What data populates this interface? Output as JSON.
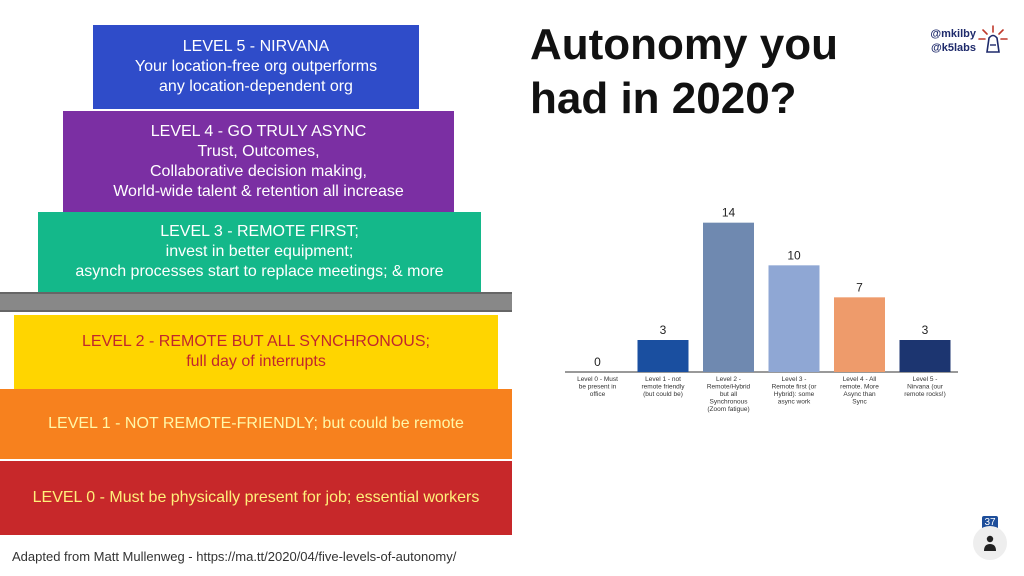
{
  "slide": {
    "title_lines": [
      "Autonomy you",
      "had in 2020?"
    ],
    "handles": [
      "@mkilby",
      "@k5labs"
    ],
    "footer": "Adapted from Matt Mullenweg - https://ma.tt/2020/04/five-levels-of-autonomy/",
    "page_number": "37"
  },
  "levels": [
    {
      "lines": [
        "LEVEL 5 - NIRVANA",
        "Your location-free org outperforms",
        "any location-dependent org"
      ],
      "color": "#2f4cc9",
      "text_color": "#ffffff"
    },
    {
      "lines": [
        "LEVEL 4 - GO TRULY ASYNC",
        "Trust, Outcomes,",
        "Collaborative decision making,",
        "World-wide talent & retention all increase"
      ],
      "color": "#7b2fa3",
      "text_color": "#ffffff"
    },
    {
      "lines": [
        "LEVEL 3 - REMOTE FIRST;",
        "invest in better equipment;",
        "asynch processes start  to replace meetings; & more"
      ],
      "color": "#14b88a",
      "text_color": "#ffffff"
    },
    {
      "lines": [
        "LEVEL 2 - REMOTE BUT ALL SYNCHRONOUS;",
        "full day of interrupts"
      ],
      "color": "#ffd500",
      "text_color": "#c1272d"
    },
    {
      "lines": [
        "LEVEL 1 - NOT REMOTE-FRIENDLY; but could be remote"
      ],
      "color": "#f7811e",
      "text_color": "#fff7a8"
    },
    {
      "lines": [
        "LEVEL 0 - Must be physically present for job; essential workers"
      ],
      "color": "#c7282a",
      "text_color": "#fff07a"
    }
  ],
  "chart_data": {
    "type": "bar",
    "categories": [
      "Level 0 - Must be present in office",
      "Level 1 - not remote friendly (but could be)",
      "Level 2 - Remote/Hybrid but all Synchronous (Zoom fatigue)",
      "Level 3 - Remote first (or Hybrid): some async work",
      "Level 4 - All remote. More Async than Sync",
      "Level 5 - Nirvana (our remote rocks!)"
    ],
    "category_lines": [
      [
        "Level 0 - Must",
        "be present in",
        "office"
      ],
      [
        "Level 1 - not",
        "remote friendly",
        "(but could be)"
      ],
      [
        "Level 2 -",
        "Remote/Hybrid",
        "but all",
        "Synchronous",
        "(Zoom fatigue)"
      ],
      [
        "Level 3 -",
        "Remote first (or",
        "Hybrid): some",
        "async work"
      ],
      [
        "Level 4 - All",
        "remote. More",
        "Async than",
        "Sync"
      ],
      [
        "Level 5 -",
        "Nirvana (our",
        "remote rocks!)"
      ]
    ],
    "values": [
      0,
      3,
      14,
      10,
      7,
      3
    ],
    "colors": [
      "#1a4fa0",
      "#1a4fa0",
      "#6f89b0",
      "#8fa7d4",
      "#ee9b6b",
      "#1c3570"
    ],
    "ylim": [
      0,
      15
    ],
    "grid": false
  }
}
